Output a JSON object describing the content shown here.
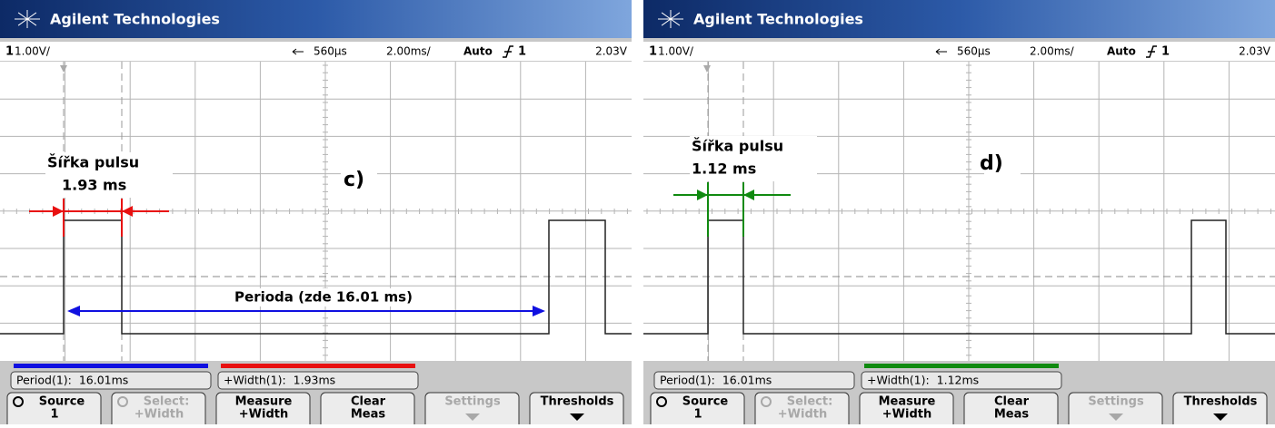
{
  "panels": [
    {
      "brand": "Agilent Technologies",
      "channel": "1",
      "scale": "1.00V/",
      "status": {
        "delay": "560µs",
        "timebase": "2.00ms/",
        "mode": "Auto",
        "trigger_source": "1",
        "trigger_level": "2.03V"
      },
      "annotation": {
        "title": "Šířka pulsu",
        "value": "1.93 ms",
        "label": "c)",
        "color": "#e81010"
      },
      "period_note": {
        "text": "Perioda (zde 16.01 ms)",
        "color": "#1010e0"
      },
      "measurements": [
        {
          "text": "Period(1):  16.01ms",
          "bar_color": "#1010e0"
        },
        {
          "text": "+Width(1):  1.93ms",
          "bar_color": "#e81010"
        }
      ],
      "softkeys": [
        {
          "lines": [
            "Source",
            "1"
          ],
          "enabled": true
        },
        {
          "lines": [
            "Select:",
            "+Width"
          ],
          "enabled": false
        },
        {
          "lines": [
            "Measure",
            "+Width"
          ],
          "enabled": true
        },
        {
          "lines": [
            "Clear",
            "Meas"
          ],
          "enabled": true
        },
        {
          "lines": [
            "Settings"
          ],
          "enabled": false
        },
        {
          "lines": [
            "Thresholds"
          ],
          "enabled": true
        }
      ]
    },
    {
      "brand": "Agilent Technologies",
      "channel": "1",
      "scale": "1.00V/",
      "status": {
        "delay": "560µs",
        "timebase": "2.00ms/",
        "mode": "Auto",
        "trigger_source": "1",
        "trigger_level": "2.03V"
      },
      "annotation": {
        "title": "Šířka pulsu",
        "value": "1.12 ms",
        "label": "d)",
        "color": "#108a10"
      },
      "measurements": [
        {
          "text": "Period(1):  16.01ms"
        },
        {
          "text": "+Width(1):  1.12ms",
          "bar_color": "#108a10"
        }
      ],
      "softkeys": [
        {
          "lines": [
            "Source",
            "1"
          ],
          "enabled": true
        },
        {
          "lines": [
            "Select:",
            "+Width"
          ],
          "enabled": false
        },
        {
          "lines": [
            "Measure",
            "+Width"
          ],
          "enabled": true
        },
        {
          "lines": [
            "Clear",
            "Meas"
          ],
          "enabled": true
        },
        {
          "lines": [
            "Settings"
          ],
          "enabled": false
        },
        {
          "lines": [
            "Thresholds"
          ],
          "enabled": true
        }
      ]
    }
  ]
}
